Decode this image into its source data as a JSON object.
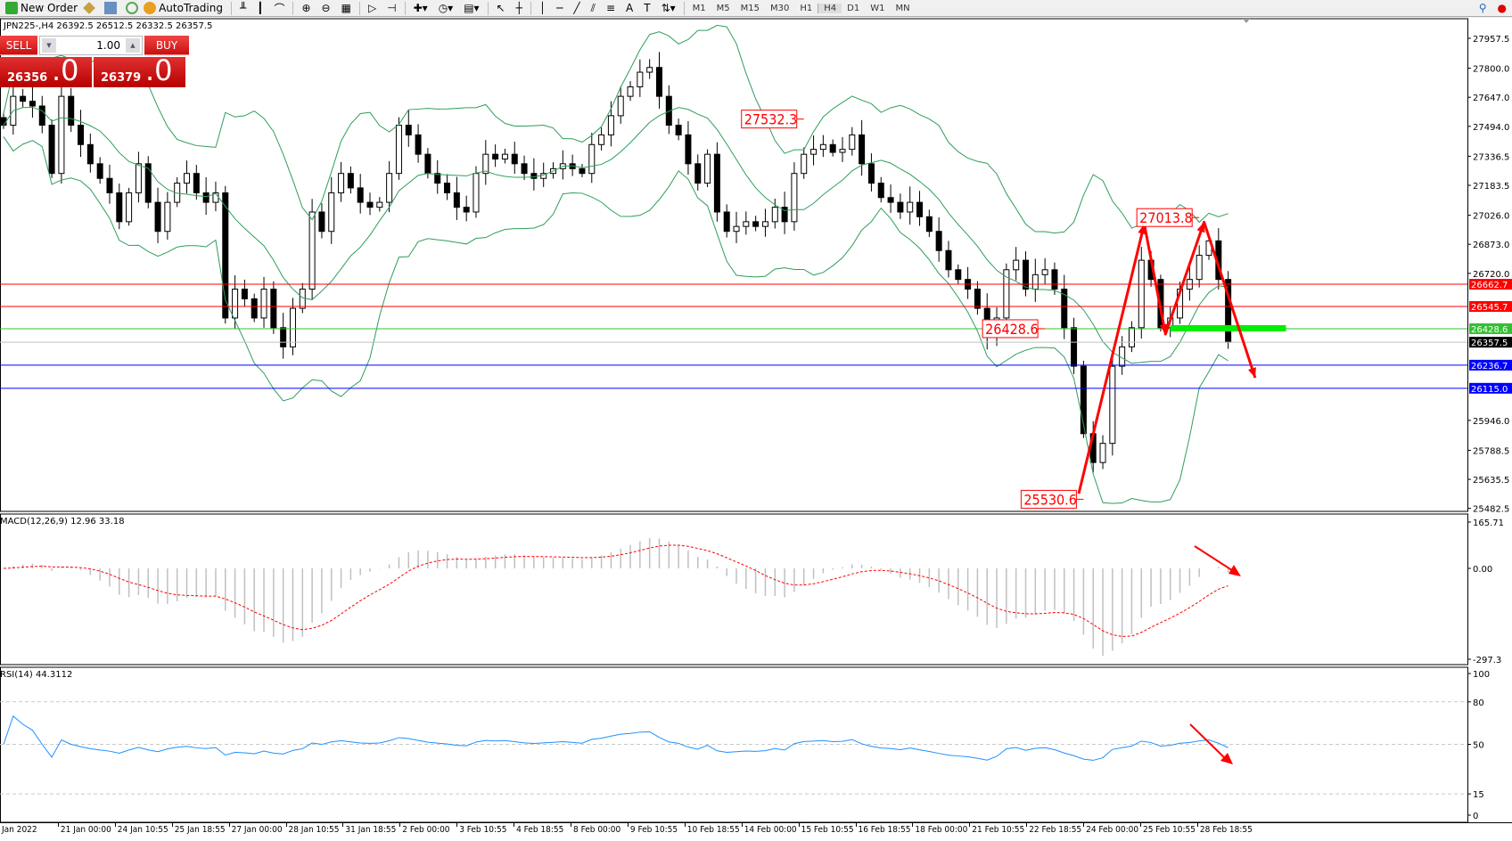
{
  "toolbar": {
    "new_order": "New Order",
    "auto_trading": "AutoTrading",
    "timeframes": [
      "M1",
      "M5",
      "M15",
      "M30",
      "H1",
      "H4",
      "D1",
      "W1",
      "MN"
    ],
    "active_timeframe": "H4"
  },
  "symbol_line": "JPN225-,H4  26392.5 26512.5 26332.5 26357.5",
  "trade_panel": {
    "sell_label": "SELL",
    "buy_label": "BUY",
    "lot": "1.00",
    "sell_big": "26356",
    "sell_frac": ".0",
    "buy_big": "26379",
    "buy_frac": ".0"
  },
  "price_axis": [
    "27957.5",
    "27800.0",
    "27647.0",
    "27494.0",
    "27336.5",
    "27183.5",
    "27026.0",
    "26873.0",
    "26720.0",
    "25946.0",
    "25788.5",
    "25635.5",
    "25482.5"
  ],
  "levels": [
    {
      "price": 26662.7,
      "label": "26662.7",
      "color": "#ff0000"
    },
    {
      "price": 26545.7,
      "label": "26545.7",
      "color": "#ff0000"
    },
    {
      "price": 26428.6,
      "label": "26428.6",
      "color": "#33c033"
    },
    {
      "price": 26357.5,
      "label": "26357.5",
      "color": "#000000",
      "line": "#c0c0c0"
    },
    {
      "price": 26236.7,
      "label": "26236.7",
      "color": "#0000ff"
    },
    {
      "price": 26115.0,
      "label": "26115.0",
      "color": "#0000ff"
    }
  ],
  "closes": [
    27500,
    27652,
    27626,
    27601,
    27500,
    27246,
    27652,
    27500,
    27398,
    27297,
    27220,
    27144,
    26992,
    27144,
    27297,
    27094,
    26941,
    27094,
    27195,
    27246,
    27144,
    27094,
    27144,
    26485,
    26637,
    26586,
    26485,
    26637,
    26434,
    26333,
    26536,
    26637,
    27043,
    26941,
    27144,
    27246,
    27170,
    27094,
    27068,
    27094,
    27246,
    27500,
    27449,
    27347,
    27246,
    27195,
    27144,
    27068,
    27043,
    27246,
    27347,
    27322,
    27347,
    27297,
    27246,
    27220,
    27246,
    27271,
    27297,
    27271,
    27246,
    27398,
    27449,
    27550,
    27652,
    27702,
    27779,
    27804,
    27652,
    27500,
    27449,
    27297,
    27195,
    27347,
    27043,
    26941,
    26967,
    26992,
    26967,
    26992,
    27068,
    26992,
    27246,
    27347,
    27373,
    27398,
    27357,
    27373,
    27449,
    27297,
    27195,
    27119,
    27094,
    27043,
    27094,
    27018,
    26941,
    26840,
    26739,
    26688,
    26637,
    26536,
    26383,
    26485,
    26739,
    26789,
    26637,
    26713,
    26739,
    26637,
    26434,
    26231,
    25876,
    25724,
    25825,
    26231,
    26333,
    26434,
    26789,
    26688,
    26434,
    26485,
    26637,
    26688,
    26815,
    26891,
    26688,
    26357.5
  ],
  "price_labels": [
    {
      "text": "27532.3",
      "price": 27532.3,
      "index": 83
    },
    {
      "text": "27013.8",
      "price": 27013.8,
      "index": 124
    },
    {
      "text": "26428.6",
      "price": 26428.6,
      "index": 108
    },
    {
      "text": "25530.6",
      "price": 25530.6,
      "index": 112
    }
  ],
  "zigzag": [
    {
      "index": 111.5,
      "price": 25560
    },
    {
      "index": 118.3,
      "price": 26980
    },
    {
      "index": 120.5,
      "price": 26400
    },
    {
      "index": 124.5,
      "price": 26990
    },
    {
      "index": 129.8,
      "price": 26170
    }
  ],
  "green_zone": {
    "price": 26428.6,
    "from_index": 121,
    "to_index": 133
  },
  "macd": {
    "label": "MACD(12,26,9) 12.96 33.18",
    "axis": [
      "165.71",
      "0.00",
      "-297.3"
    ],
    "max": 165.71,
    "min": -297.3
  },
  "rsi": {
    "label": "RSI(14) 44.3112",
    "axis": [
      "100",
      "80",
      "50",
      "15",
      "0"
    ],
    "levels": [
      80,
      50,
      15
    ]
  },
  "time_axis": [
    "Jan 2022",
    "21 Jan 00:00",
    "24 Jan 10:55",
    "25 Jan 18:55",
    "27 Jan 00:00",
    "28 Jan 10:55",
    "31 Jan 18:55",
    "2 Feb 00:00",
    "3 Feb 10:55",
    "4 Feb 18:55",
    "8 Feb 00:00",
    "9 Feb 10:55",
    "10 Feb 18:55",
    "14 Feb 00:00",
    "15 Feb 10:55",
    "16 Feb 18:55",
    "18 Feb 00:00",
    "21 Feb 10:55",
    "22 Feb 18:55",
    "24 Feb 00:00",
    "25 Feb 10:55",
    "28 Feb 18:55"
  ],
  "colors": {
    "bull": "#ffffff",
    "bear": "#000000",
    "bands": "#2e9e5a",
    "annotation": "#ff0000",
    "macd_signal": "#ff0000",
    "rsi_line": "#1e90ff",
    "histogram": "#c0c0c0"
  }
}
